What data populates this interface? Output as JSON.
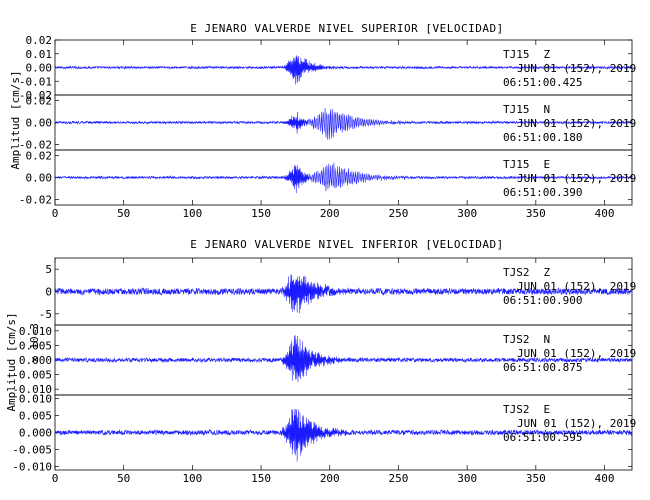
{
  "chart_data": [
    {
      "type": "line",
      "title": "E JENARO VALVERDE NIVEL SUPERIOR [VELOCIDAD]",
      "ylabel": "Amplitud [cm/s]",
      "xlabel": "",
      "xlim": [
        0,
        420
      ],
      "xticks": [
        "0",
        "50",
        "100",
        "150",
        "200",
        "250",
        "300",
        "350",
        "400"
      ],
      "color": "#1a1aff",
      "channels": [
        {
          "name": "TJ15 Z",
          "station": "TJ15",
          "component": "Z",
          "date": "JUN 01 (152), 2019",
          "time": "06:51:00.425",
          "ylim": [
            -0.02,
            0.02
          ],
          "yticks": [
            "0.02",
            "0.01",
            "0.00",
            "-0.01",
            "-0.02"
          ],
          "noise": 0.0007,
          "events": [
            {
              "start": 165,
              "peak": 175,
              "end": 205,
              "amplitude": 0.016,
              "period": 0.6
            }
          ]
        },
        {
          "name": "TJ15 N",
          "station": "TJ15",
          "component": "N",
          "date": "JUN 01 (152), 2019",
          "time": "06:51:00.180",
          "ylim": [
            -0.025,
            0.025
          ],
          "yticks": [
            "0.02",
            "0.00",
            "-0.02"
          ],
          "noise": 0.0009,
          "events": [
            {
              "start": 165,
              "peak": 176,
              "end": 190,
              "amplitude": 0.012,
              "period": 0.6
            },
            {
              "start": 178,
              "peak": 200,
              "end": 255,
              "amplitude": 0.02,
              "period": 1.3
            }
          ]
        },
        {
          "name": "TJ15 E",
          "station": "TJ15",
          "component": "E",
          "date": "JUN 01 (152), 2019",
          "time": "06:51:00.390",
          "ylim": [
            -0.025,
            0.025
          ],
          "yticks": [
            "0.02",
            "0.00",
            "-0.02"
          ],
          "noise": 0.0009,
          "events": [
            {
              "start": 165,
              "peak": 176,
              "end": 192,
              "amplitude": 0.02,
              "period": 0.6
            },
            {
              "start": 180,
              "peak": 200,
              "end": 260,
              "amplitude": 0.018,
              "period": 1.3
            }
          ]
        }
      ]
    },
    {
      "type": "line",
      "title": "E JENARO VALVERDE NIVEL INFERIOR [VELOCIDAD]",
      "ylabel": "Amplitud [cm/s]",
      "xlabel": "",
      "xlim": [
        0,
        420
      ],
      "xticks": [
        "0",
        "50",
        "100",
        "150",
        "200",
        "250",
        "300",
        "350",
        "400"
      ],
      "color": "#1a1aff",
      "channels": [
        {
          "name": "TJS2 Z",
          "station": "TJS2",
          "component": "Z",
          "date": "JUN 01 (152), 2019",
          "time": "06:51:00.900",
          "ylim": [
            -7.5,
            7.5
          ],
          "yticks": [
            "5",
            "0",
            "-5"
          ],
          "scale_label": "x 10-3",
          "noise": 0.6,
          "events": [
            {
              "start": 163,
              "peak": 175,
              "end": 215,
              "amplitude": 7.2,
              "period": 0.6
            }
          ]
        },
        {
          "name": "TJS2 N",
          "station": "TJS2",
          "component": "N",
          "date": "JUN 01 (152), 2019",
          "time": "06:51:00.875",
          "ylim": [
            -0.012,
            0.012
          ],
          "yticks": [
            "0.010",
            "0.005",
            "0.000",
            "-0.005",
            "-0.010"
          ],
          "noise": 0.0006,
          "events": [
            {
              "start": 163,
              "peak": 175,
              "end": 215,
              "amplitude": 0.0115,
              "period": 0.6
            }
          ]
        },
        {
          "name": "TJS2 E",
          "station": "TJS2",
          "component": "E",
          "date": "JUN 01 (152), 2019",
          "time": "06:51:00.595",
          "ylim": [
            -0.011,
            0.011
          ],
          "yticks": [
            "0.010",
            "0.005",
            "0.000",
            "-0.005",
            "-0.010"
          ],
          "noise": 0.0006,
          "events": [
            {
              "start": 163,
              "peak": 175,
              "end": 215,
              "amplitude": 0.0105,
              "period": 0.6
            }
          ]
        }
      ]
    }
  ]
}
